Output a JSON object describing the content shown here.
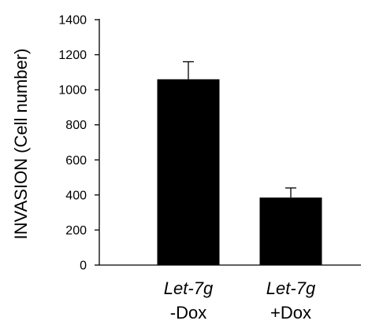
{
  "chart_data": {
    "type": "bar",
    "title": "",
    "xlabel": "",
    "ylabel": "INVASION (Cell number)",
    "ylim": [
      0,
      1400
    ],
    "yticks": [
      0,
      200,
      400,
      600,
      800,
      1000,
      1200,
      1400
    ],
    "grid": false,
    "legend": "none",
    "categories": [
      {
        "name": "Let-7g",
        "condition": "-Dox"
      },
      {
        "name": "Let-7g",
        "condition": "+Dox"
      }
    ],
    "values": [
      1060,
      385
    ],
    "errors": [
      100,
      55
    ],
    "bar_color": "#000000"
  }
}
